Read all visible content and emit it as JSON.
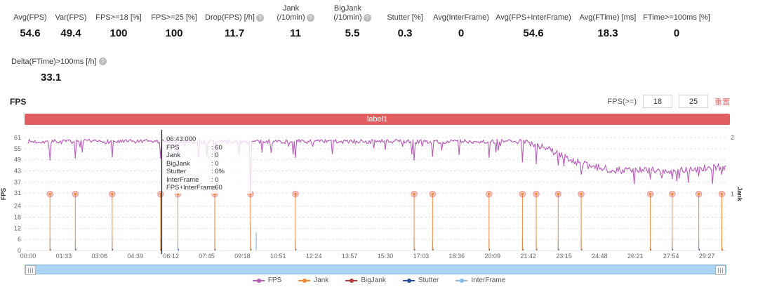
{
  "metrics": [
    {
      "label": "Avg(FPS)",
      "value": "54.6",
      "help": false
    },
    {
      "label": "Var(FPS)",
      "value": "49.4",
      "help": false
    },
    {
      "label": "FPS>=18 [%]",
      "value": "100",
      "help": false
    },
    {
      "label": "FPS>=25 [%]",
      "value": "100",
      "help": false
    },
    {
      "label": "Drop(FPS) [/h]",
      "value": "11.7",
      "help": true
    },
    {
      "label": "Jank\n(/10min)",
      "value": "11",
      "help": true
    },
    {
      "label": "BigJank\n(/10min)",
      "value": "5.5",
      "help": true
    },
    {
      "label": "Stutter [%]",
      "value": "0.3",
      "help": false
    },
    {
      "label": "Avg(InterFrame)",
      "value": "0",
      "help": false
    },
    {
      "label": "Avg(FPS+InterFrame)",
      "value": "54.6",
      "help": false
    },
    {
      "label": "Avg(FTime) [ms]",
      "value": "18.3",
      "help": false
    },
    {
      "label": "FTime>=100ms [%]",
      "value": "0",
      "help": false
    }
  ],
  "delta_metric": {
    "label": "Delta(FTime)>100ms [/h]",
    "value": "33.1",
    "help": true
  },
  "chart_header": {
    "title": "FPS",
    "fps_ge_label": "FPS(>=)",
    "input1": "18",
    "input2": "25",
    "reset_label": "重置"
  },
  "banner": {
    "label": "label1",
    "color": "#e25f5f"
  },
  "tooltip": {
    "time": "06:43:000",
    "rows": [
      {
        "label": "FPS",
        "value": ": 60"
      },
      {
        "label": "Jank",
        "value": ": 0"
      },
      {
        "label": "BigJank",
        "value": ": 0"
      },
      {
        "label": "Stutter",
        "value": ": 0%"
      },
      {
        "label": "InterFrame",
        "value": ": 0"
      },
      {
        "label": "FPS+InterFrame",
        "value": ": 60"
      }
    ]
  },
  "legend": [
    {
      "label": "FPS",
      "color": "#b85cb8"
    },
    {
      "label": "Jank",
      "color": "#ef8a3a"
    },
    {
      "label": "BigJank",
      "color": "#b23a34"
    },
    {
      "label": "Stutter",
      "color": "#2b4a9b"
    },
    {
      "label": "InterFrame",
      "color": "#85bbe9"
    }
  ],
  "chart_data": {
    "type": "line",
    "title": "label1",
    "ylabel_left": "FPS",
    "ylabel_right": "Jank",
    "ylim_left": [
      0,
      61
    ],
    "ylim_right": [
      0,
      2
    ],
    "y_ticks_left": [
      0,
      6,
      12,
      18,
      24,
      31,
      37,
      43,
      49,
      55,
      61
    ],
    "y_ticks_right": [
      1,
      2
    ],
    "x_ticks": [
      "00:00",
      "01:33",
      "03:06",
      "04:39",
      "06:12",
      "07:45",
      "09:18",
      "10:51",
      "12:24",
      "13:57",
      "15:30",
      "17:03",
      "18:36",
      "20:09",
      "21:42",
      "23:15",
      "24:48",
      "26:21",
      "27:54",
      "29:27"
    ],
    "x_tick_interval_min": 1.55,
    "duration_min": 30.3,
    "grid": true,
    "legend_position": "bottom",
    "fps_anchors": [
      [
        0,
        58.8
      ],
      [
        21.7,
        58.8
      ],
      [
        22.2,
        56.5
      ],
      [
        22.7,
        54.0
      ],
      [
        23.2,
        51.0
      ],
      [
        23.7,
        48.0
      ],
      [
        24.5,
        44.8
      ],
      [
        25.5,
        43.5
      ],
      [
        27.5,
        43.2
      ],
      [
        29.0,
        44.0
      ],
      [
        30.3,
        45.5
      ]
    ],
    "fps_noise_before_decline": 1.1,
    "fps_noise_after_decline": 1.9,
    "fps_dips": [
      [
        0.95,
        49
      ],
      [
        2.05,
        50
      ],
      [
        3.65,
        50.5
      ],
      [
        5.75,
        50
      ],
      [
        6.5,
        51
      ],
      [
        8.1,
        49.5
      ],
      [
        9.65,
        31.5
      ],
      [
        11.6,
        50
      ],
      [
        13.2,
        52
      ],
      [
        16.75,
        49
      ],
      [
        17.55,
        51
      ],
      [
        20.0,
        50
      ],
      [
        21.45,
        48
      ],
      [
        22.05,
        47
      ],
      [
        23.0,
        46
      ],
      [
        24.0,
        41
      ],
      [
        27.0,
        38.5
      ],
      [
        27.95,
        39
      ],
      [
        29.1,
        40
      ],
      [
        30.1,
        41
      ]
    ],
    "jank_events_min": [
      0.95,
      2.05,
      3.65,
      5.75,
      6.5,
      8.1,
      9.65,
      11.6,
      16.75,
      17.55,
      20.0,
      21.45,
      22.05,
      23.0,
      24.0,
      27.0,
      27.95,
      29.1,
      30.1
    ],
    "jank_marker_value": 1,
    "interframe_events": [
      [
        0.95,
        0.22
      ],
      [
        2.05,
        0.18
      ],
      [
        3.65,
        0.25
      ],
      [
        5.75,
        0.2
      ],
      [
        6.5,
        0.16
      ],
      [
        8.1,
        0.22
      ],
      [
        9.65,
        0.5
      ],
      [
        9.9,
        0.32
      ],
      [
        11.6,
        0.2
      ],
      [
        16.75,
        0.24
      ],
      [
        17.55,
        0.18
      ],
      [
        20.0,
        0.2
      ],
      [
        21.45,
        0.22
      ],
      [
        22.05,
        0.18
      ],
      [
        23.0,
        0.2
      ],
      [
        24.0,
        0.24
      ],
      [
        27.0,
        0.2
      ],
      [
        27.95,
        0.22
      ],
      [
        29.1,
        0.18
      ],
      [
        30.1,
        0.2
      ]
    ],
    "cursor_time_min": 5.8
  }
}
